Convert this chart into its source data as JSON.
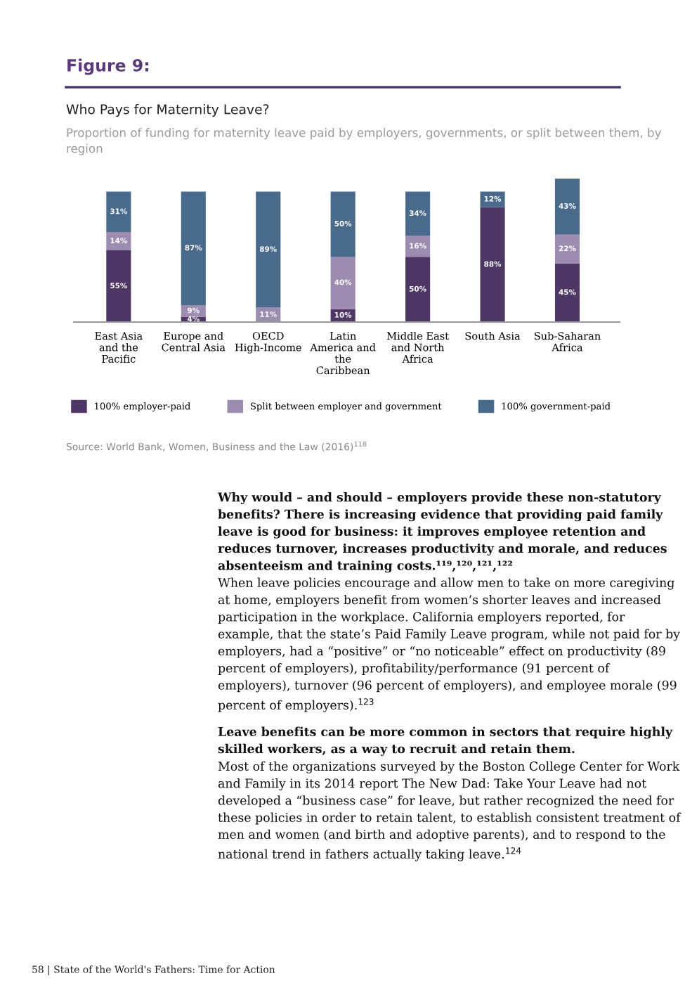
{
  "chart_data": {
    "type": "bar",
    "stacked": true,
    "title": "Who Pays for Maternity Leave?",
    "subtitle": "Proportion of funding for maternity leave paid by employers, governments, or split between them, by region",
    "categories": [
      "East Asia and the Pacific",
      "Europe and Central Asia",
      "OECD High-Income",
      "Latin America and the Caribbean",
      "Middle East and North Africa",
      "South Asia",
      "Sub-Saharan Africa"
    ],
    "series": [
      {
        "name": "100% employer-paid",
        "color": "#4e3764",
        "values": [
          55,
          4,
          0,
          10,
          50,
          88,
          45
        ],
        "value_labels": [
          "55%",
          "4%",
          null,
          "10%",
          "50%",
          "88%",
          "45%"
        ]
      },
      {
        "name": "Split between employer and government",
        "color": "#9c8cb0",
        "values": [
          14,
          9,
          11,
          40,
          16,
          0,
          22
        ],
        "value_labels": [
          "14%",
          "9%",
          "11%",
          "40%",
          "16%",
          null,
          "22%"
        ]
      },
      {
        "name": "100% government-paid",
        "color": "#4a6a8c",
        "values": [
          31,
          87,
          89,
          50,
          34,
          12,
          43
        ],
        "value_labels": [
          "31%",
          "87%",
          "89%",
          "50%",
          "34%",
          "12%",
          "43%"
        ]
      }
    ],
    "ylim": [
      0,
      110
    ],
    "tick_labels": "x",
    "grid": false,
    "legend": "bottom",
    "annotations": [
      "Figure 9:",
      "Source: World Bank, Women, Business and the Law (2016)$^{118}$",
      "Why would – and should – employers provide these non-statutory benefits? There is increasing evidence that providing paid family leave is good for business: it improves employee retention and reduces turnover, increases productivity and morale, and reduces absenteeism and training costs.¹¹⁹,¹²⁰,¹²¹,¹²²",
      "When leave policies encourage and allow men to take on more caregiving at home, employers benefit from women’s shorter leaves and increased participation in the workplace. California employers reported, for example, that the state’s Paid Family Leave program, while not paid for by employers, had a “positive” or “no noticeable” effect on productivity (89 percent of employers), profitability/performance (91 percent of employers), turnover (96 percent of employers), and employee morale (99 percent of employers).$^{123}$",
      "Leave benefits can be more common in sectors that require highly skilled workers, as a way to recruit and retain them.",
      "Most of the organizations surveyed by the Boston College Center for Work and Family in its 2014 report The New Dad: Take Your Leave had not developed a “business case” for leave, but rather recognized the need for these policies in order to retain talent, to establish consistent treatment of men and women (and birth and adoptive parents), and to respond to the national trend in fathers actually taking leave.$^{124}$",
      "58 | State of the World's Fathers: Time for Action"
    ]
  }
}
